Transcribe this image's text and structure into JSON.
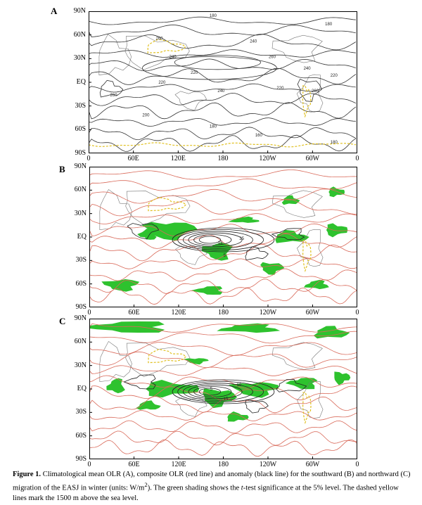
{
  "figure": {
    "panels": [
      {
        "label": "A"
      },
      {
        "label": "B"
      },
      {
        "label": "C"
      }
    ],
    "lat_ticks": [
      "90N",
      "60N",
      "30N",
      "EQ",
      "30S",
      "60S",
      "90S"
    ],
    "lon_ticks": [
      "0",
      "60E",
      "120E",
      "180",
      "120W",
      "60W",
      "0"
    ],
    "panel_a_contour_labels": [
      "180",
      "180",
      "240",
      "260",
      "240",
      "260",
      "220",
      "240",
      "220",
      "260",
      "240",
      "220",
      "200",
      "180",
      "160",
      "180",
      "220",
      "260"
    ],
    "panel_b_contour_labels": [
      "25",
      "15",
      "5"
    ],
    "panel_c_contour_labels": [
      "10",
      "15",
      "5"
    ],
    "colors": {
      "climatology_line": "#333333",
      "composite_olr_line": "#d96a5a",
      "anomaly_line": "#222222",
      "significance_shading": "#2ec22e",
      "topography_line": "#e0c020"
    }
  },
  "caption": {
    "label": "Figure 1.",
    "text_1": " Climatological mean OLR (A), composite OLR (red line) and anomaly (black line) for the southward (B) and northward (C) migration of the EASJ in winter (units: W/m",
    "superscript": "2",
    "text_2": "). The green shading shows the ",
    "italic": "t",
    "text_3": "-test significance at the 5% level. The dashed yellow lines mark the 1500 m above the sea level."
  }
}
